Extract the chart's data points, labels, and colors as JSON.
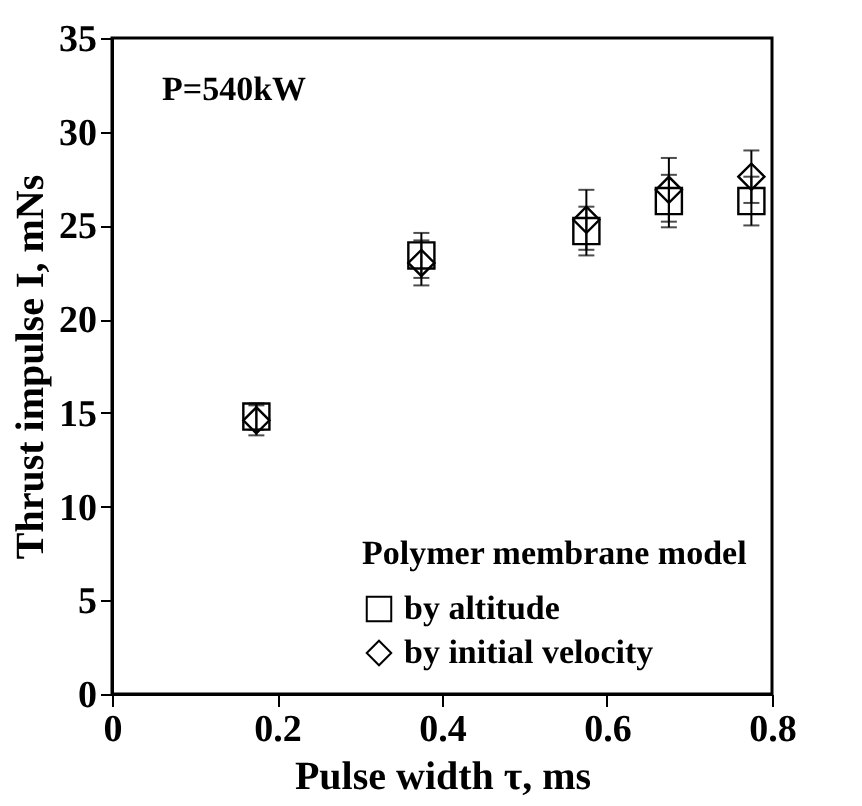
{
  "chart_data": {
    "type": "scatter",
    "xlabel": "Pulse width τ, ms",
    "ylabel": "Thrust impulse I, mNs",
    "legend_title": "Polymer membrane model",
    "x": [
      0.175,
      0.375,
      0.575,
      0.675,
      0.775
    ],
    "series": [
      {
        "name": "by altitude",
        "color": "#000000",
        "marker": "square",
        "values": [
          14.8,
          23.4,
          24.7,
          26.3,
          26.3
        ],
        "errors": [
          0.7,
          1.2,
          1.3,
          1.4,
          1.3
        ]
      },
      {
        "name": "by initial velocity",
        "color": "#000000",
        "marker": "diamond",
        "values": [
          14.6,
          23.0,
          25.3,
          26.9,
          27.6
        ],
        "errors": [
          0.8,
          1.2,
          1.6,
          1.7,
          1.4
        ]
      }
    ],
    "xlim": [
      0,
      0.8
    ],
    "xticks": [
      0,
      0.2,
      0.4,
      0.6,
      0.8
    ],
    "ylim": [
      0,
      35
    ],
    "yticks": [
      0,
      5,
      10,
      15,
      20,
      25,
      30,
      35
    ],
    "grid": false,
    "legend": "bottom right",
    "annotations": [
      "P=540kW"
    ]
  }
}
